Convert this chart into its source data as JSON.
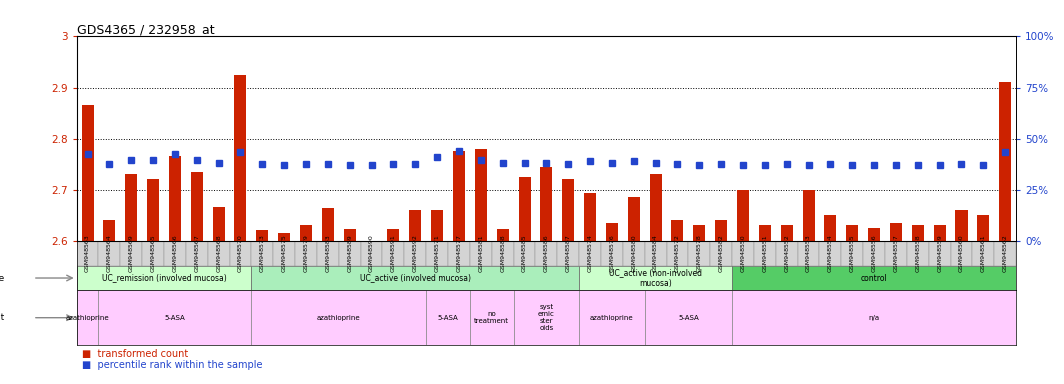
{
  "title": "GDS4365 / 232958_at",
  "samples": [
    "GSM948563",
    "GSM948564",
    "GSM948569",
    "GSM948565",
    "GSM948566",
    "GSM948567",
    "GSM948568",
    "GSM948570",
    "GSM948573",
    "GSM948575",
    "GSM948579",
    "GSM948583",
    "GSM948589",
    "GSM948590",
    "GSM948591",
    "GSM948592",
    "GSM948571",
    "GSM948577",
    "GSM948581",
    "GSM948588",
    "GSM948585",
    "GSM948586",
    "GSM948587",
    "GSM948574",
    "GSM948576",
    "GSM948580",
    "GSM948584",
    "GSM948572",
    "GSM948578",
    "GSM948582",
    "GSM948550",
    "GSM948551",
    "GSM948552",
    "GSM948553",
    "GSM948554",
    "GSM948555",
    "GSM948556",
    "GSM948557",
    "GSM948558",
    "GSM948559",
    "GSM948560",
    "GSM948561",
    "GSM948562"
  ],
  "bar_values": [
    2.865,
    2.641,
    2.73,
    2.72,
    2.765,
    2.735,
    2.665,
    2.925,
    2.62,
    2.615,
    2.63,
    2.663,
    2.622,
    2.6,
    2.622,
    2.66,
    2.66,
    2.775,
    2.78,
    2.622,
    2.725,
    2.745,
    2.72,
    2.693,
    2.635,
    2.685,
    2.73,
    2.64,
    2.63,
    2.64,
    2.7,
    2.63,
    2.63,
    2.7,
    2.65,
    2.63,
    2.625,
    2.635,
    2.63,
    2.63,
    2.66,
    2.65,
    2.91
  ],
  "percentile_values_y": [
    2.77,
    2.75,
    2.758,
    2.758,
    2.77,
    2.758,
    2.752,
    2.773,
    2.75,
    2.748,
    2.75,
    2.75,
    2.748,
    2.748,
    2.75,
    2.75,
    2.763,
    2.775,
    2.758,
    2.752,
    2.752,
    2.752,
    2.75,
    2.756,
    2.752,
    2.756,
    2.752,
    2.75,
    2.748,
    2.75,
    2.748,
    2.748,
    2.75,
    2.748,
    2.75,
    2.748,
    2.748,
    2.748,
    2.748,
    2.748,
    2.75,
    2.748,
    2.773
  ],
  "ylim": [
    2.6,
    3.0
  ],
  "yticks_left": [
    2.6,
    2.7,
    2.8,
    2.9,
    3.0
  ],
  "yticks_right_pct": [
    0,
    25,
    50,
    75,
    100
  ],
  "grid_values": [
    2.7,
    2.8,
    2.9
  ],
  "bar_color": "#cc2200",
  "percentile_color": "#2244cc",
  "disease_groups": [
    {
      "label": "UC_remission (involved mucosa)",
      "start": 0,
      "end": 8,
      "color": "#ccffcc"
    },
    {
      "label": "UC_active (involved mucosa)",
      "start": 8,
      "end": 23,
      "color": "#aaeebb"
    },
    {
      "label": "UC_active (non-involved\nmucosa)",
      "start": 23,
      "end": 30,
      "color": "#ccffcc"
    },
    {
      "label": "control",
      "start": 30,
      "end": 43,
      "color": "#55cc66"
    }
  ],
  "agent_groups": [
    {
      "label": "azathioprine",
      "start": 0,
      "end": 1
    },
    {
      "label": "5-ASA",
      "start": 1,
      "end": 8
    },
    {
      "label": "azathioprine",
      "start": 8,
      "end": 16
    },
    {
      "label": "5-ASA",
      "start": 16,
      "end": 18
    },
    {
      "label": "no\ntreatment",
      "start": 18,
      "end": 20
    },
    {
      "label": "syst\nemic\nster\noids",
      "start": 20,
      "end": 23
    },
    {
      "label": "azathioprine",
      "start": 23,
      "end": 26
    },
    {
      "label": "5-ASA",
      "start": 26,
      "end": 30
    },
    {
      "label": "n/a",
      "start": 30,
      "end": 43
    }
  ],
  "legend_bar_label": "transformed count",
  "legend_pct_label": "percentile rank within the sample",
  "title_fontsize": 9,
  "tick_label_fontsize": 4.5,
  "bar_width": 0.55
}
